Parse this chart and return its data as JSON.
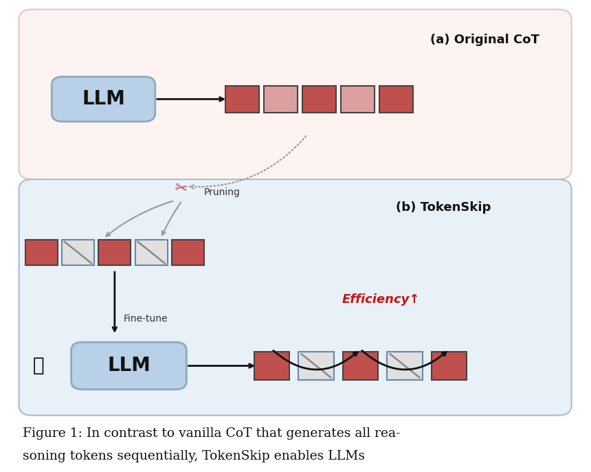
{
  "bg_color": "#ffffff",
  "panel_a_bg": "#fdf3f0",
  "panel_b_bg": "#e8f0f8",
  "llm_box_color": "#b8d0e8",
  "llm_box_border": "#8aaabf",
  "red_token_color": "#c0504d",
  "pink_token_color": "#dda0a0",
  "skipped_token_fill": "#e0e0e0",
  "skipped_token_border": "#6688aa",
  "efficiency_color": "#cc1111",
  "arrow_color": "#111111",
  "pruning_arrow_color": "#999999",
  "title_a": "(a) Original CoT",
  "title_b": "(b) TokenSkip",
  "efficiency_label": "Efficiency↑",
  "finetune_label": "Fine-tune",
  "pruning_label": "Pruning"
}
